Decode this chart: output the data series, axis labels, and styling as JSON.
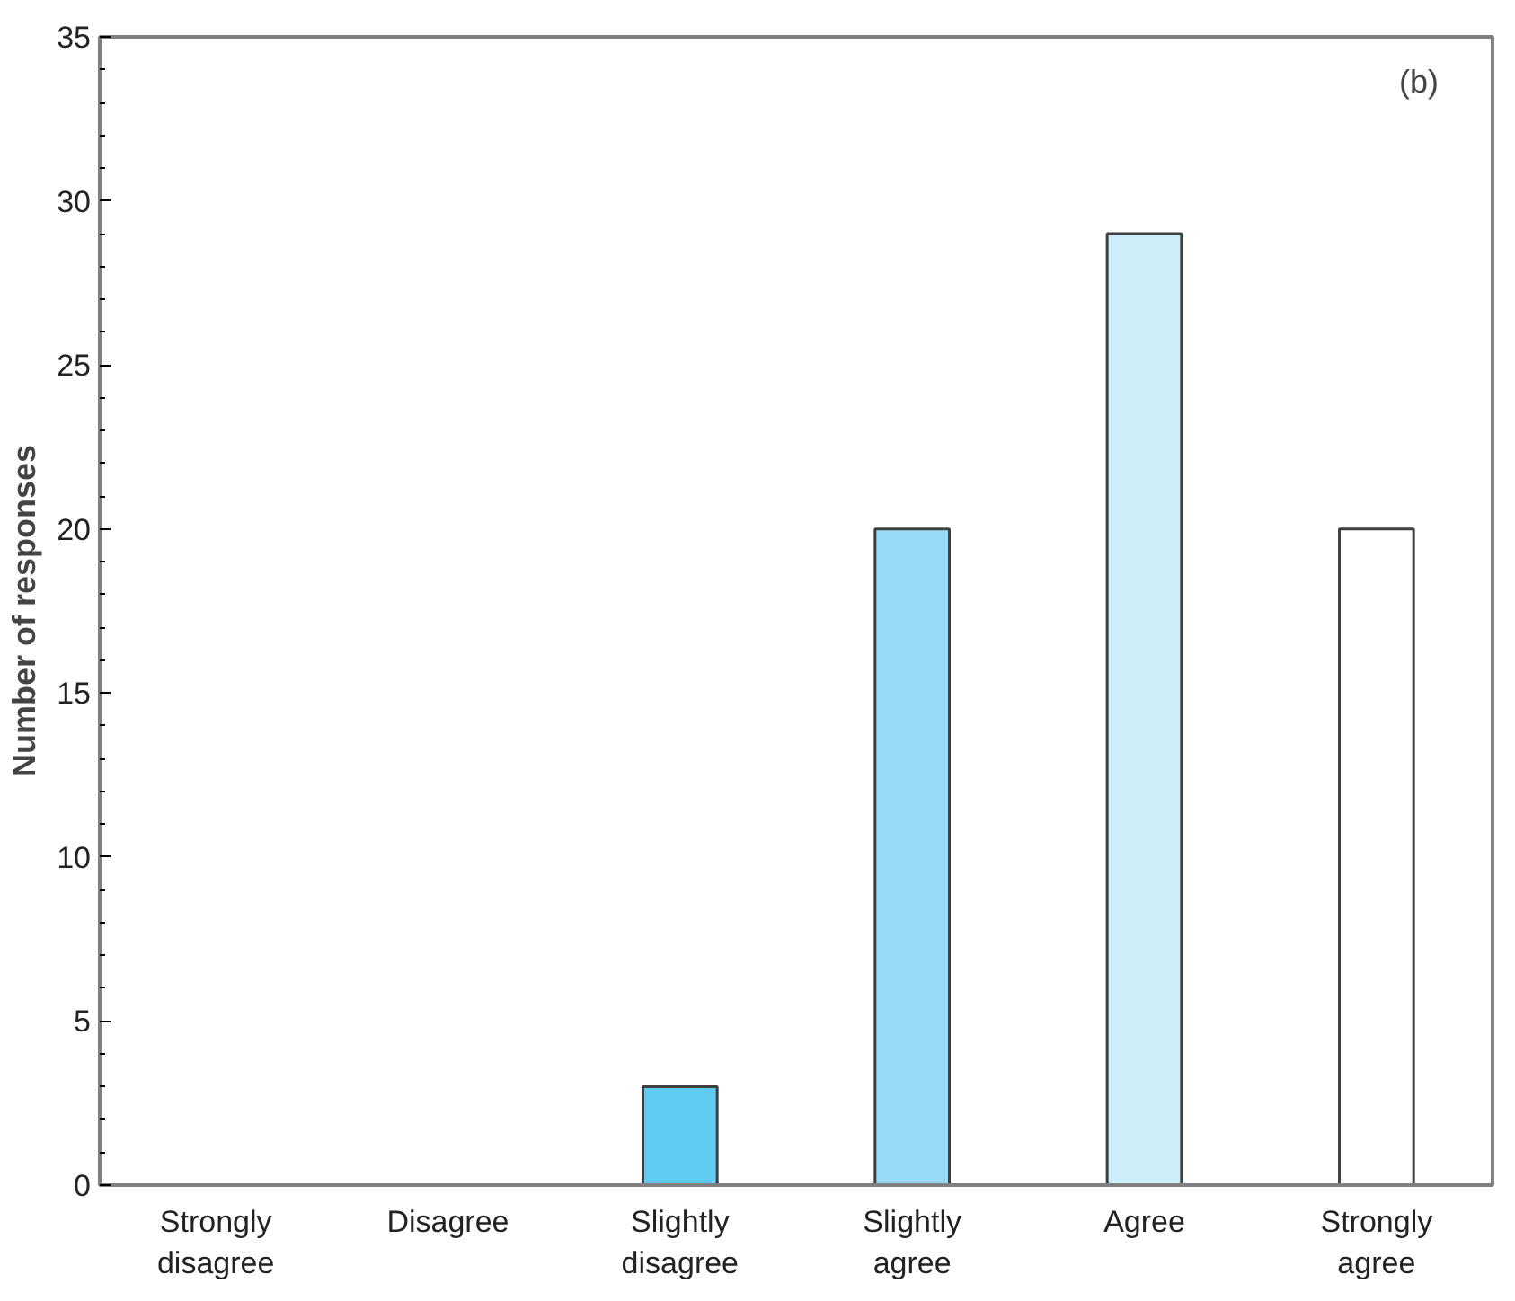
{
  "chart_data": {
    "type": "bar",
    "categories": [
      "Strongly disagree",
      "Disagree",
      "Slightly disagree",
      "Slightly agree",
      "Agree",
      "Strongly agree"
    ],
    "values": [
      0,
      0,
      3,
      20,
      29,
      20
    ],
    "colors": [
      "#404040",
      "#404040",
      "#5ecbf3",
      "#97dbf7",
      "#cdeff9",
      "#ffffff"
    ],
    "ylabel": "Number of responses",
    "ylim": [
      0,
      35
    ],
    "yticks": [
      0,
      5,
      10,
      15,
      20,
      25,
      30,
      35
    ],
    "annotations": [
      "(b)"
    ],
    "grid": false
  }
}
